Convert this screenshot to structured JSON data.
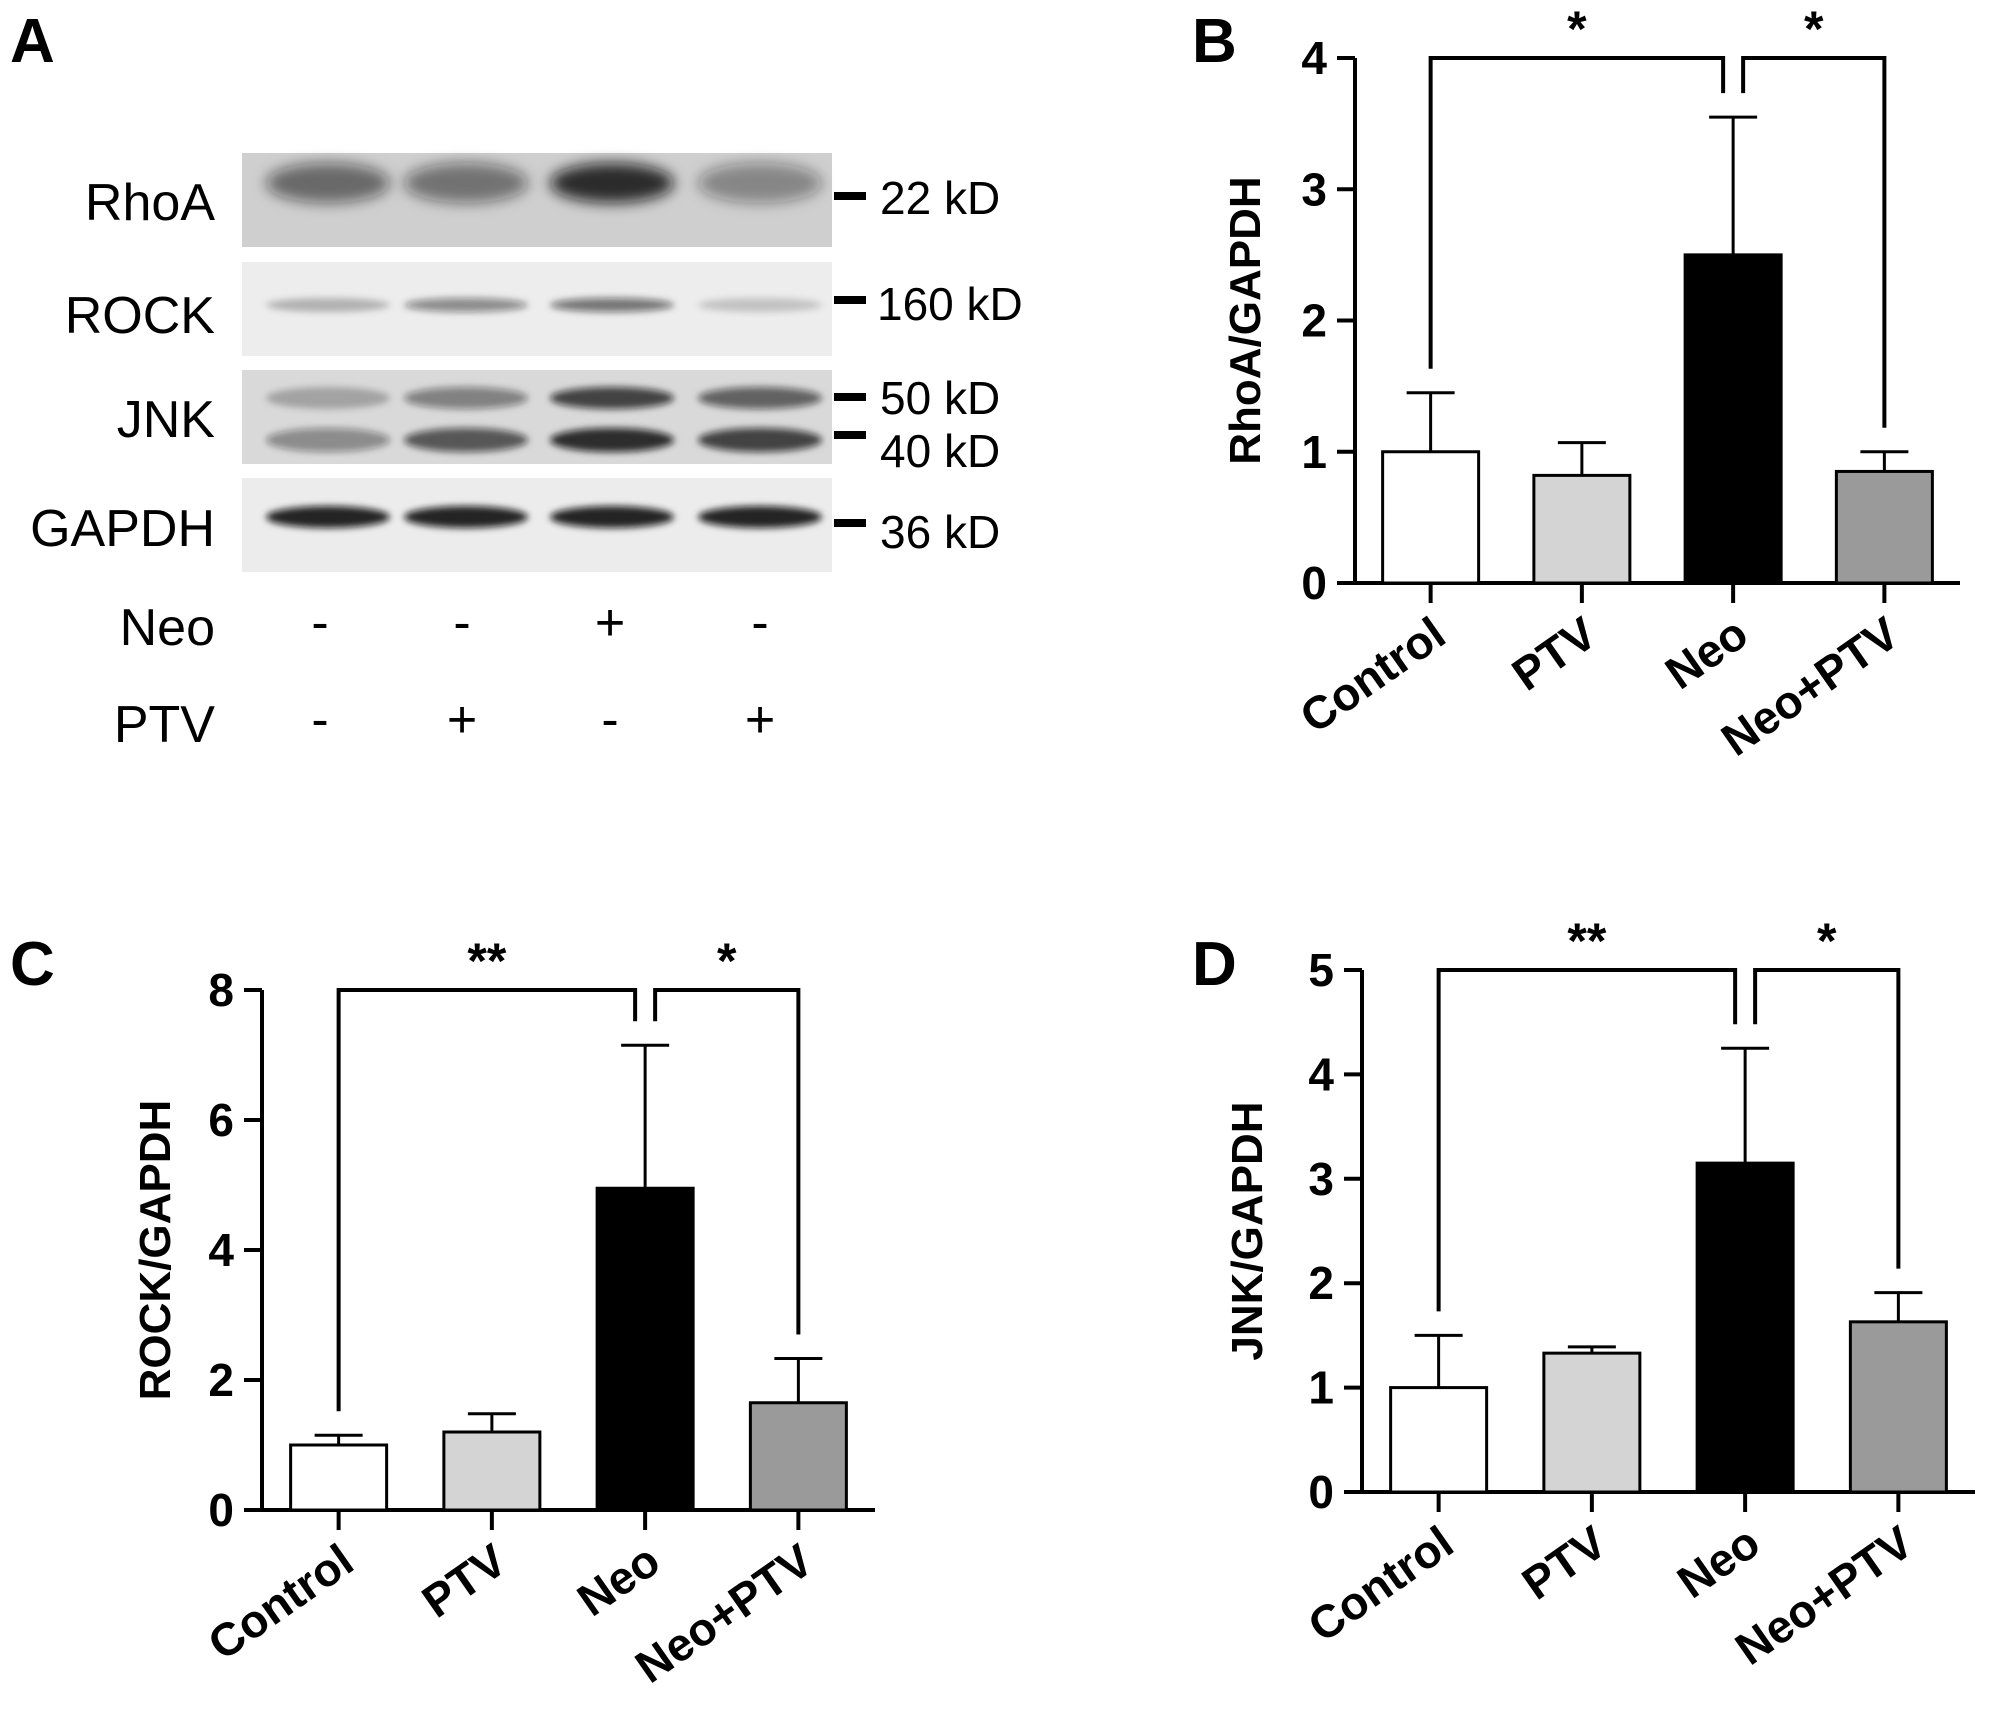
{
  "panels": {
    "A": {
      "letter": "A",
      "bands": [
        {
          "name": "RhoA",
          "markers": [
            "22 kD"
          ]
        },
        {
          "name": "ROCK",
          "markers": [
            "160 kD"
          ]
        },
        {
          "name": "JNK",
          "markers": [
            "50 kD",
            "40 kD"
          ]
        },
        {
          "name": "GAPDH",
          "markers": [
            "36 kD"
          ]
        }
      ],
      "treatments": [
        {
          "name": "Neo",
          "signs": [
            "-",
            "-",
            "+",
            "-"
          ]
        },
        {
          "name": "PTV",
          "signs": [
            "-",
            "+",
            "-",
            "+"
          ]
        }
      ],
      "band_intensity": {
        "RhoA": [
          0.55,
          0.5,
          0.85,
          0.4
        ],
        "ROCK": [
          0.25,
          0.45,
          0.55,
          0.18
        ],
        "JNK_upper": [
          0.25,
          0.45,
          0.75,
          0.6
        ],
        "JNK_lower": [
          0.4,
          0.65,
          0.85,
          0.75
        ],
        "GAPDH": [
          0.9,
          0.9,
          0.9,
          0.9
        ]
      }
    }
  },
  "chart_data": [
    {
      "panel": "B",
      "type": "bar",
      "categories": [
        "Control",
        "PTV",
        "Neo",
        "Neo+PTV"
      ],
      "values": [
        1.0,
        0.82,
        2.5,
        0.85
      ],
      "errors": [
        0.45,
        0.25,
        1.05,
        0.15
      ],
      "ylabel": "RhoA/GAPDH",
      "ylim": [
        0,
        4
      ],
      "yticks": [
        "0",
        "1",
        "2",
        "3",
        "4"
      ],
      "colors": [
        "#ffffff",
        "#d4d4d4",
        "#000000",
        "#9a9a9a"
      ],
      "significance": [
        {
          "from": "Control",
          "to": "Neo",
          "label": "*"
        },
        {
          "from": "Neo",
          "to": "Neo+PTV",
          "label": "*"
        }
      ]
    },
    {
      "panel": "C",
      "type": "bar",
      "categories": [
        "Control",
        "PTV",
        "Neo",
        "Neo+PTV"
      ],
      "values": [
        1.0,
        1.2,
        4.95,
        1.65
      ],
      "errors": [
        0.15,
        0.28,
        2.2,
        0.68
      ],
      "ylabel": "ROCK/GAPDH",
      "ylim": [
        0,
        8
      ],
      "yticks": [
        "0",
        "2",
        "4",
        "6",
        "8"
      ],
      "colors": [
        "#ffffff",
        "#d4d4d4",
        "#000000",
        "#9a9a9a"
      ],
      "significance": [
        {
          "from": "Control",
          "to": "Neo",
          "label": "**"
        },
        {
          "from": "Neo",
          "to": "Neo+PTV",
          "label": "*"
        }
      ]
    },
    {
      "panel": "D",
      "type": "bar",
      "categories": [
        "Control",
        "PTV",
        "Neo",
        "Neo+PTV"
      ],
      "values": [
        1.0,
        1.33,
        3.15,
        1.63
      ],
      "errors": [
        0.5,
        0.06,
        1.1,
        0.28
      ],
      "ylabel": "JNK/GAPDH",
      "ylim": [
        0,
        5
      ],
      "yticks": [
        "0",
        "1",
        "2",
        "3",
        "4",
        "5"
      ],
      "colors": [
        "#ffffff",
        "#d4d4d4",
        "#000000",
        "#9a9a9a"
      ],
      "significance": [
        {
          "from": "Control",
          "to": "Neo",
          "label": "**"
        },
        {
          "from": "Neo",
          "to": "Neo+PTV",
          "label": "*"
        }
      ]
    }
  ]
}
